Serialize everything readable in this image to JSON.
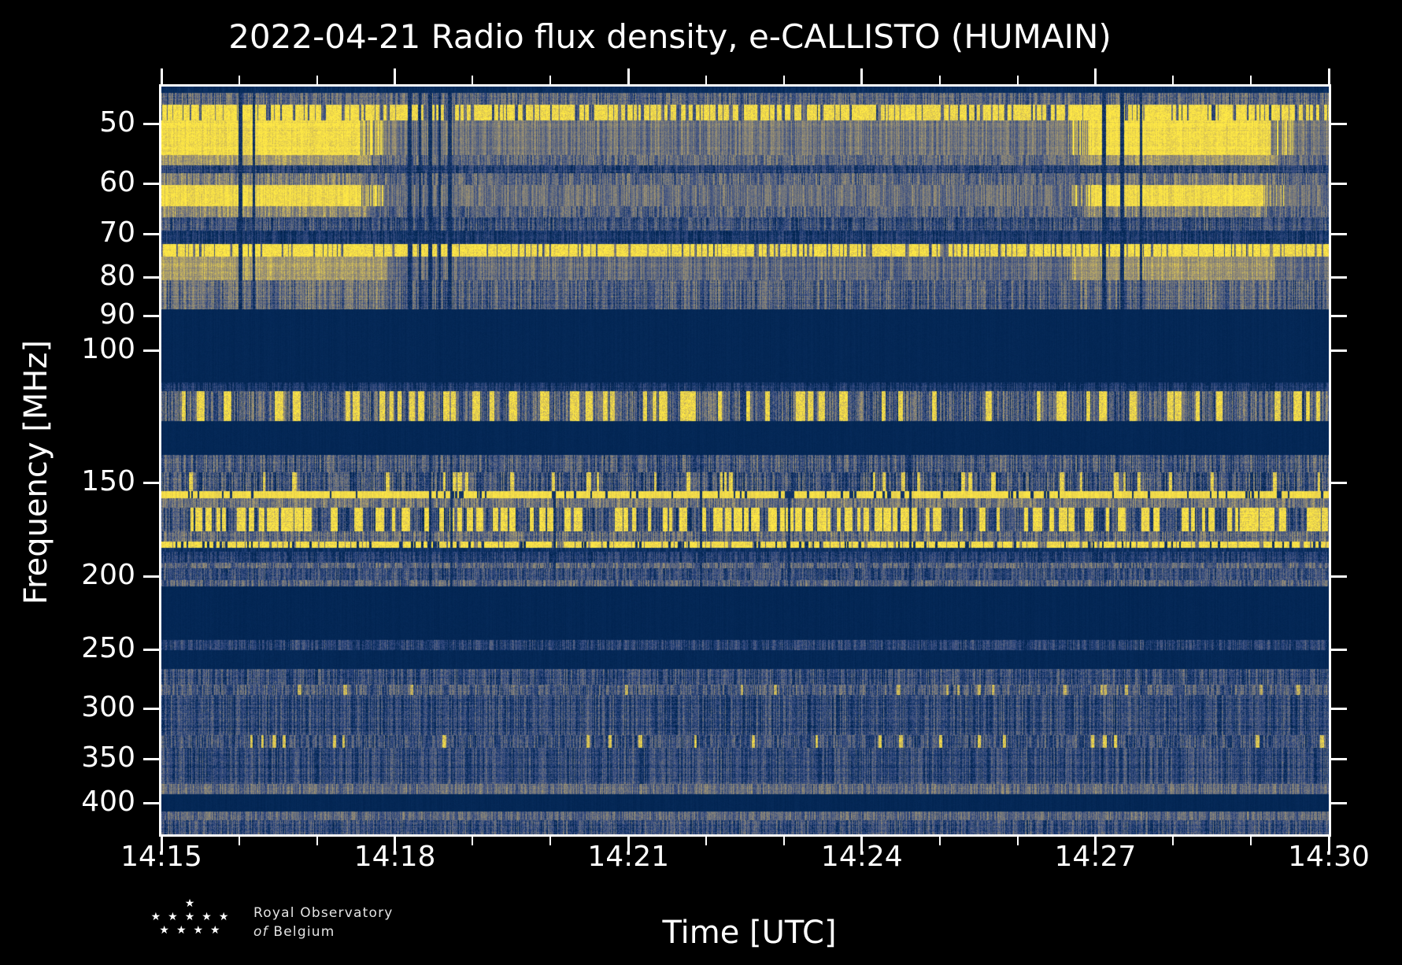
{
  "chart_data": {
    "type": "heatmap",
    "title": "2022-04-21 Radio flux density, e-CALLISTO (HUMAIN)",
    "xlabel": "Time [UTC]",
    "ylabel": "Frequency [MHz]",
    "x_axis": {
      "start": "14:15",
      "end": "14:30",
      "total_minutes": 15,
      "major_ticks": [
        "14:15",
        "14:18",
        "14:21",
        "14:24",
        "14:27",
        "14:30"
      ],
      "major_tick_minutes": [
        0,
        3,
        6,
        9,
        12,
        15
      ],
      "minor_tick_minutes": [
        1,
        2,
        4,
        5,
        7,
        8,
        10,
        11,
        13,
        14
      ]
    },
    "y_axis": {
      "scale": "log",
      "unit": "MHz",
      "tick_labels": [
        50,
        60,
        70,
        80,
        90,
        100,
        150,
        200,
        250,
        300,
        350,
        400
      ],
      "range": [
        44.6,
        441
      ]
    },
    "legend": "none",
    "grid": false,
    "colormap": {
      "name": "cividis-like",
      "stops": [
        {
          "pos": 0.0,
          "color": "#00224e"
        },
        {
          "pos": 0.12,
          "color": "#0a2f60"
        },
        {
          "pos": 0.22,
          "color": "#28427a"
        },
        {
          "pos": 0.34,
          "color": "#465681"
        },
        {
          "pos": 0.46,
          "color": "#68707f"
        },
        {
          "pos": 0.55,
          "color": "#7f7d78"
        },
        {
          "pos": 0.68,
          "color": "#9e9372"
        },
        {
          "pos": 0.8,
          "color": "#c2b05f"
        },
        {
          "pos": 0.9,
          "color": "#e3cc4e"
        },
        {
          "pos": 1.0,
          "color": "#ffe945"
        }
      ]
    },
    "render_seed": 42,
    "bands": [
      {
        "f0": 44.6,
        "f1": 45.5,
        "base": 0.1,
        "noise": 0.04,
        "grain": 0.03
      },
      {
        "f0": 45.5,
        "f1": 47.2,
        "base": 0.4,
        "noise": 0.22,
        "grain": 0.13,
        "rowVar": 0.06
      },
      {
        "f0": 47.2,
        "f1": 49.5,
        "base": 0.38,
        "noise": 0.2,
        "grain": 0.12,
        "dash": {
          "density": 0.3,
          "level": 0.95,
          "run": [
            2,
            7
          ]
        },
        "bursts": [
          {
            "t0": 0,
            "t1": 2.55,
            "dash": {
              "density": 0.48,
              "level": 0.98
            }
          },
          {
            "t0": 11.65,
            "t1": 14.3,
            "dash": {
              "density": 0.48,
              "level": 0.98
            }
          }
        ]
      },
      {
        "f0": 49.5,
        "f1": 55.0,
        "base": 0.5,
        "noise": 0.18,
        "grain": 0.09,
        "rowVar": 0.05,
        "bursts": [
          {
            "t0": 0,
            "t1": 2.55,
            "level": 0.96,
            "noise": 0.06
          },
          {
            "t0": 2.55,
            "t1": 2.85,
            "level": 0.96,
            "mix": 0.5
          },
          {
            "t0": 11.65,
            "t1": 11.95,
            "level": 0.96,
            "mix": 0.55
          },
          {
            "t0": 11.95,
            "t1": 14.25,
            "level": 0.96,
            "noise": 0.06
          },
          {
            "t0": 14.25,
            "t1": 14.55,
            "level": 0.9,
            "mix": 0.4
          }
        ]
      },
      {
        "f0": 55.0,
        "f1": 56.7,
        "base": 0.44,
        "noise": 0.2,
        "grain": 0.12,
        "bursts": [
          {
            "t0": 0,
            "t1": 2.7,
            "level": 0.7,
            "noise": 0.14
          },
          {
            "t0": 11.8,
            "t1": 14.35,
            "level": 0.68,
            "noise": 0.14
          }
        ]
      },
      {
        "f0": 56.7,
        "f1": 58.2,
        "base": 0.22,
        "noise": 0.15,
        "grain": 0.11,
        "rowVar": 0.05
      },
      {
        "f0": 58.2,
        "f1": 60.3,
        "base": 0.42,
        "noise": 0.22,
        "grain": 0.12,
        "bursts": [
          {
            "t0": 0,
            "t1": 2.6,
            "level": 0.55
          },
          {
            "t0": 11.8,
            "t1": 14.25,
            "level": 0.52
          }
        ]
      },
      {
        "f0": 60.3,
        "f1": 64.3,
        "base": 0.48,
        "noise": 0.18,
        "grain": 0.09,
        "bursts": [
          {
            "t0": 0,
            "t1": 2.55,
            "level": 0.95,
            "noise": 0.07
          },
          {
            "t0": 2.55,
            "t1": 2.85,
            "level": 0.95,
            "mix": 0.5
          },
          {
            "t0": 11.7,
            "t1": 11.95,
            "level": 0.95,
            "mix": 0.55
          },
          {
            "t0": 11.95,
            "t1": 14.15,
            "level": 0.95,
            "noise": 0.07
          },
          {
            "t0": 14.15,
            "t1": 14.45,
            "level": 0.88,
            "mix": 0.4
          }
        ]
      },
      {
        "f0": 64.3,
        "f1": 66.6,
        "base": 0.4,
        "noise": 0.2,
        "grain": 0.12,
        "bursts": [
          {
            "t0": 0,
            "t1": 2.65,
            "level": 0.62
          },
          {
            "t0": 11.85,
            "t1": 14.2,
            "level": 0.6
          }
        ]
      },
      {
        "f0": 66.6,
        "f1": 69.3,
        "base": 0.3,
        "noise": 0.2,
        "grain": 0.13,
        "rowVar": 0.06
      },
      {
        "f0": 69.3,
        "f1": 72.3,
        "base": 0.16,
        "noise": 0.12,
        "grain": 0.09,
        "rowVar": 0.05
      },
      {
        "f0": 72.3,
        "f1": 75.1,
        "base": 0.44,
        "noise": 0.22,
        "grain": 0.12,
        "dash": {
          "density": 0.42,
          "level": 0.96,
          "run": [
            2,
            6
          ]
        },
        "bursts": [
          {
            "t0": 0,
            "t1": 2.6,
            "dash": {
              "density": 0.52,
              "level": 0.98
            }
          },
          {
            "t0": 11.7,
            "t1": 14.2,
            "dash": {
              "density": 0.52,
              "level": 0.98
            }
          }
        ]
      },
      {
        "f0": 75.1,
        "f1": 80.7,
        "base": 0.44,
        "noise": 0.18,
        "grain": 0.1,
        "rowVar": 0.05,
        "bursts": [
          {
            "t0": 0,
            "t1": 2.9,
            "level": 0.72,
            "noise": 0.12
          },
          {
            "t0": 11.7,
            "t1": 14.3,
            "level": 0.68,
            "noise": 0.13
          }
        ]
      },
      {
        "f0": 80.7,
        "f1": 88.3,
        "base": 0.37,
        "noise": 0.22,
        "grain": 0.13,
        "rowVar": 0.07,
        "bursts": [
          {
            "t0": 0,
            "t1": 2.9,
            "level": 0.45
          },
          {
            "t0": 11.7,
            "t1": 14.3,
            "level": 0.44
          }
        ]
      },
      {
        "f0": 88.3,
        "f1": 110.5,
        "base": 0.05,
        "noise": 0.015,
        "grain": 0.02
      },
      {
        "f0": 110.5,
        "f1": 113.4,
        "base": 0.16,
        "noise": 0.13,
        "grain": 0.09,
        "rowVar": 0.04
      },
      {
        "f0": 113.4,
        "f1": 124.3,
        "base": 0.38,
        "noise": 0.26,
        "grain": 0.15,
        "dash": {
          "density": 0.05,
          "level": 0.93,
          "run": [
            4,
            12
          ]
        }
      },
      {
        "f0": 124.3,
        "f1": 138.0,
        "base": 0.05,
        "noise": 0.015,
        "grain": 0.02
      },
      {
        "f0": 138.0,
        "f1": 145.4,
        "base": 0.35,
        "noise": 0.24,
        "grain": 0.14,
        "rowVar": 0.06
      },
      {
        "f0": 145.4,
        "f1": 154.0,
        "base": 0.31,
        "noise": 0.26,
        "grain": 0.15,
        "rowVar": 0.06,
        "dash": {
          "density": 0.02,
          "level": 0.9,
          "run": [
            2,
            6
          ]
        }
      },
      {
        "f0": 154.0,
        "f1": 157.5,
        "base": 0.95,
        "noise": 0.04,
        "grain": 0.04,
        "darkDash": {
          "density": 0.05,
          "level": 0.15,
          "run": [
            1,
            3
          ]
        }
      },
      {
        "f0": 157.5,
        "f1": 162.1,
        "base": 0.5,
        "noise": 0.22,
        "grain": 0.12
      },
      {
        "f0": 162.1,
        "f1": 174.2,
        "base": 0.28,
        "noise": 0.22,
        "grain": 0.14,
        "rowVar": 0.05,
        "dash": {
          "density": 0.1,
          "level": 0.95,
          "run": [
            3,
            11
          ]
        },
        "bursts": [
          {
            "t0": 7.3,
            "t1": 8.6,
            "dash": {
              "density": 0.32,
              "level": 0.97
            }
          },
          {
            "t0": 13.9,
            "t1": 14.45,
            "dash": {
              "density": 0.28,
              "level": 0.96
            }
          }
        ]
      },
      {
        "f0": 174.2,
        "f1": 179.9,
        "base": 0.44,
        "noise": 0.24,
        "grain": 0.13,
        "rowVar": 0.05
      },
      {
        "f0": 179.9,
        "f1": 183.2,
        "base": 0.52,
        "noise": 0.2,
        "grain": 0.11,
        "dash": {
          "density": 0.5,
          "level": 0.96,
          "run": [
            3,
            9
          ]
        },
        "darkDash": {
          "density": 0.06,
          "level": 0.12,
          "run": [
            1,
            3
          ]
        }
      },
      {
        "f0": 183.2,
        "f1": 185.3,
        "base": 0.12,
        "noise": 0.07,
        "grain": 0.05
      },
      {
        "f0": 185.3,
        "f1": 191.9,
        "base": 0.2,
        "noise": 0.15,
        "grain": 0.11,
        "rowVar": 0.05
      },
      {
        "f0": 191.9,
        "f1": 195.0,
        "base": 0.42,
        "noise": 0.22,
        "grain": 0.12
      },
      {
        "f0": 195.0,
        "f1": 202.3,
        "base": 0.28,
        "noise": 0.18,
        "grain": 0.12,
        "rowVar": 0.05
      },
      {
        "f0": 202.3,
        "f1": 206.1,
        "base": 0.4,
        "noise": 0.22,
        "grain": 0.12
      },
      {
        "f0": 206.1,
        "f1": 243.3,
        "base": 0.045,
        "noise": 0.015,
        "grain": 0.02
      },
      {
        "f0": 243.3,
        "f1": 250.9,
        "base": 0.22,
        "noise": 0.17,
        "grain": 0.11
      },
      {
        "f0": 250.9,
        "f1": 265.7,
        "base": 0.055,
        "noise": 0.02,
        "grain": 0.025
      },
      {
        "f0": 265.7,
        "f1": 278.6,
        "base": 0.28,
        "noise": 0.2,
        "grain": 0.13,
        "rowVar": 0.06
      },
      {
        "f0": 278.6,
        "f1": 287.8,
        "base": 0.36,
        "noise": 0.22,
        "grain": 0.13,
        "rowVar": 0.05,
        "dash": {
          "density": 0.01,
          "level": 0.8,
          "run": [
            2,
            5
          ]
        }
      },
      {
        "f0": 287.8,
        "f1": 325.3,
        "base": 0.26,
        "noise": 0.19,
        "grain": 0.13,
        "rowVar": 0.07
      },
      {
        "f0": 325.3,
        "f1": 338.0,
        "base": 0.3,
        "noise": 0.21,
        "grain": 0.13,
        "rowVar": 0.05,
        "dash": {
          "density": 0.012,
          "level": 0.88,
          "run": [
            2,
            5
          ]
        }
      },
      {
        "f0": 338.0,
        "f1": 377.9,
        "base": 0.26,
        "noise": 0.18,
        "grain": 0.12,
        "rowVar": 0.07
      },
      {
        "f0": 377.9,
        "f1": 390.0,
        "base": 0.45,
        "noise": 0.2,
        "grain": 0.11,
        "rowVar": 0.04
      },
      {
        "f0": 390.0,
        "f1": 411.2,
        "base": 0.05,
        "noise": 0.02,
        "grain": 0.02
      },
      {
        "f0": 411.2,
        "f1": 422.3,
        "base": 0.42,
        "noise": 0.2,
        "grain": 0.11
      },
      {
        "f0": 422.3,
        "f1": 441.0,
        "base": 0.3,
        "noise": 0.2,
        "grain": 0.13,
        "rowVar": 0.06
      }
    ],
    "dark_streaks": [
      {
        "t": 1.01,
        "w": 3,
        "f0": 44,
        "f1": 90
      },
      {
        "t": 1.18,
        "w": 2,
        "f0": 44,
        "f1": 90
      },
      {
        "t": 3.19,
        "w": 3,
        "f0": 44,
        "f1": 90
      },
      {
        "t": 3.32,
        "w": 2,
        "f0": 44,
        "f1": 90
      },
      {
        "t": 3.45,
        "w": 3,
        "f0": 44,
        "f1": 90
      },
      {
        "t": 3.57,
        "w": 2,
        "f0": 44,
        "f1": 90
      },
      {
        "t": 3.7,
        "w": 3,
        "f0": 44,
        "f1": 90
      },
      {
        "t": 12.11,
        "w": 3,
        "f0": 44,
        "f1": 90
      },
      {
        "t": 12.34,
        "w": 3,
        "f0": 44,
        "f1": 90
      },
      {
        "t": 12.58,
        "w": 2,
        "f0": 44,
        "f1": 90
      },
      {
        "t": 3.45,
        "w": 2,
        "f0": 130,
        "f1": 210
      },
      {
        "t": 3.72,
        "w": 2,
        "f0": 130,
        "f1": 210
      },
      {
        "t": 5.05,
        "w": 2,
        "f0": 155,
        "f1": 200
      },
      {
        "t": 6.93,
        "w": 2,
        "f0": 130,
        "f1": 210
      },
      {
        "t": 8.06,
        "w": 2,
        "f0": 155,
        "f1": 210
      },
      {
        "t": 9.62,
        "w": 2,
        "f0": 130,
        "f1": 210
      }
    ]
  },
  "logo": {
    "line1": "Royal Observatory",
    "line2_italic": "of",
    "line2": "Belgium",
    "star_rows": [
      1,
      5,
      4
    ]
  }
}
